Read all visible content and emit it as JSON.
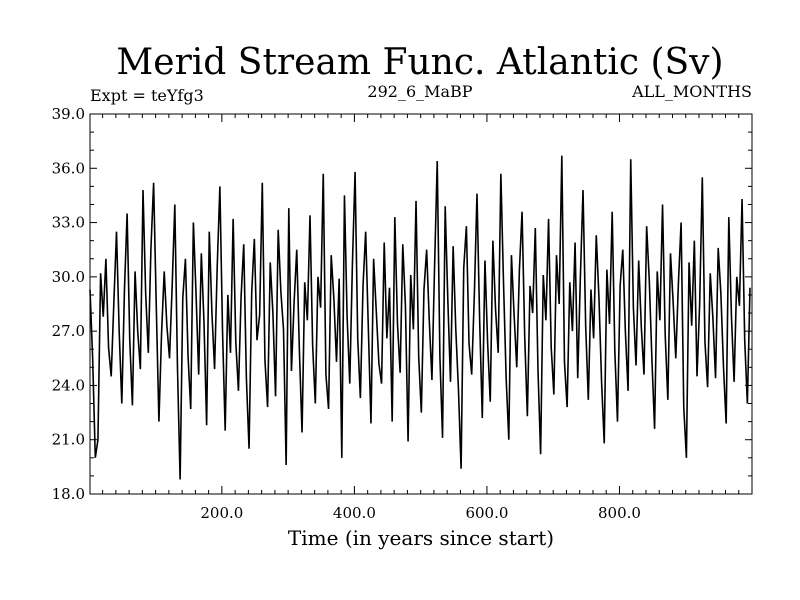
{
  "header": {
    "title": "Merid Stream Func. Atlantic (Sv)",
    "expt_label": "Expt = teYfg3",
    "run_label": "292_6_MaBP",
    "months_label": "ALL_MONTHS"
  },
  "chart_data": {
    "type": "line",
    "title": "Merid Stream Func. Atlantic (Sv)",
    "xlabel": "Time (in years since start)",
    "ylabel": "",
    "xlim": [
      1,
      1000
    ],
    "ylim": [
      18.0,
      39.0
    ],
    "x_ticks": [
      200,
      400,
      600,
      800
    ],
    "x_tick_labels": [
      "200.0",
      "400.0",
      "600.0",
      "800.0"
    ],
    "y_ticks": [
      18,
      21,
      24,
      27,
      30,
      33,
      36,
      39
    ],
    "y_tick_labels": [
      "18.0",
      "21.0",
      "24.0",
      "27.0",
      "30.0",
      "33.0",
      "36.0",
      "39.0"
    ],
    "grid": false,
    "series": [
      {
        "x_start": 1,
        "x_step": 4,
        "values": [
          29.3,
          25.5,
          20.0,
          21.0,
          30.2,
          27.8,
          31.0,
          26.1,
          24.5,
          28.6,
          32.5,
          27.0,
          23.0,
          29.3,
          33.5,
          26.5,
          22.9,
          30.3,
          27.0,
          24.9,
          34.8,
          29.1,
          25.8,
          31.6,
          35.2,
          28.4,
          22.0,
          26.9,
          30.3,
          27.3,
          25.5,
          29.5,
          34.0,
          25.0,
          18.8,
          28.8,
          31.0,
          25.6,
          22.7,
          33.0,
          29.1,
          24.6,
          31.3,
          27.5,
          21.8,
          32.5,
          28.0,
          24.9,
          30.6,
          35.0,
          27.0,
          21.5,
          29.0,
          25.8,
          33.2,
          26.4,
          23.7,
          28.9,
          31.8,
          24.4,
          20.5,
          29.1,
          32.1,
          26.5,
          27.9,
          35.2,
          25.4,
          22.8,
          30.8,
          28.0,
          23.4,
          32.6,
          29.2,
          27.1,
          19.6,
          33.8,
          24.8,
          28.6,
          31.5,
          25.9,
          21.4,
          29.7,
          27.6,
          33.4,
          26.2,
          23.0,
          30.0,
          28.3,
          35.7,
          24.6,
          22.7,
          31.2,
          28.8,
          25.3,
          29.9,
          20.0,
          34.5,
          27.8,
          24.1,
          30.7,
          35.8,
          26.6,
          23.3,
          29.5,
          32.5,
          27.2,
          21.9,
          31.0,
          28.1,
          25.2,
          24.1,
          31.9,
          26.6,
          29.4,
          22.0,
          33.3,
          27.4,
          24.7,
          31.8,
          28.4,
          20.9,
          30.1,
          27.1,
          34.2,
          25.6,
          22.5,
          29.3,
          31.5,
          27.6,
          24.3,
          30.6,
          36.4,
          25.6,
          21.1,
          33.9,
          28.7,
          24.2,
          31.7,
          27.1,
          23.8,
          19.4,
          30.5,
          32.8,
          26.3,
          24.6,
          29.0,
          34.6,
          27.6,
          22.2,
          30.9,
          26.4,
          23.1,
          32.0,
          28.2,
          25.8,
          35.7,
          29.7,
          24.4,
          21.0,
          31.2,
          27.9,
          25.0,
          30.4,
          33.6,
          26.7,
          22.3,
          29.5,
          28.0,
          32.7,
          24.9,
          20.2,
          30.1,
          27.6,
          33.2,
          26.1,
          23.5,
          31.2,
          28.5,
          36.7,
          25.3,
          22.8,
          29.7,
          27.0,
          31.9,
          24.4,
          30.0,
          34.8,
          27.3,
          23.2,
          29.3,
          26.6,
          32.3,
          28.9,
          24.2,
          20.8,
          30.4,
          27.4,
          33.6,
          25.9,
          22.0,
          29.5,
          31.5,
          26.9,
          23.7,
          36.5,
          28.3,
          25.1,
          30.9,
          27.2,
          24.6,
          32.8,
          29.8,
          25.4,
          21.6,
          30.3,
          27.6,
          34.0,
          26.8,
          23.2,
          31.3,
          28.6,
          25.5,
          29.7,
          33.0,
          22.8,
          20.0,
          30.8,
          27.3,
          32.0,
          24.5,
          28.5,
          35.5,
          26.4,
          23.9,
          30.2,
          27.7,
          24.4,
          31.6,
          29.1,
          25.0,
          21.9,
          33.3,
          27.8,
          24.2,
          30.0,
          28.4,
          34.3,
          26.5,
          23.0,
          29.4
        ]
      }
    ]
  }
}
